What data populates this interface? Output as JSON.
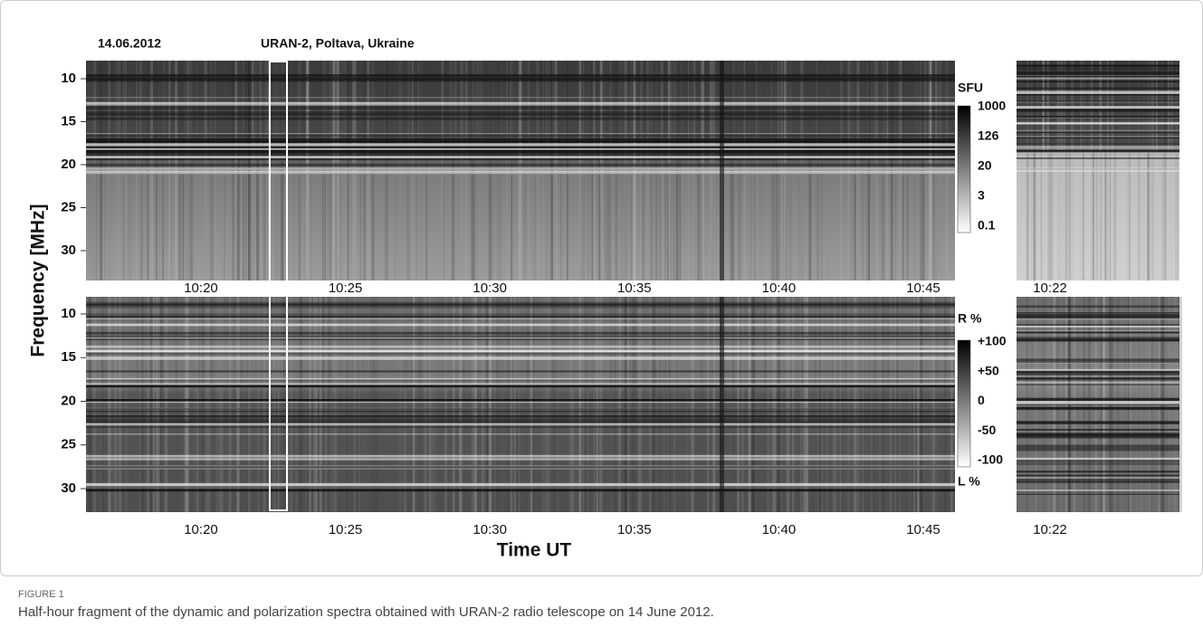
{
  "figure": {
    "date": "14.06.2012",
    "station": "URAN-2, Poltava, Ukraine",
    "y_label": "Frequency [MHz]",
    "x_label": "Time UT",
    "y_ticks": [
      10,
      15,
      20,
      25,
      30
    ],
    "x_ticks": [
      "10:20",
      "10:25",
      "10:30",
      "10:35",
      "10:40",
      "10:45"
    ],
    "inset_x_tick": "10:22",
    "intensity_scale": {
      "title": "SFU",
      "labels": [
        "1000",
        "126",
        "20",
        "3",
        "0.1"
      ]
    },
    "polarization_scale": {
      "top": "R %",
      "bottom": "L %",
      "labels": [
        "+100",
        "+50",
        "0",
        "-50",
        "-100"
      ]
    }
  },
  "caption": {
    "label": "FIGURE 1",
    "text": "Half-hour fragment of the dynamic and polarization spectra obtained with URAN-2 radio telescope on 14 June 2012."
  }
}
